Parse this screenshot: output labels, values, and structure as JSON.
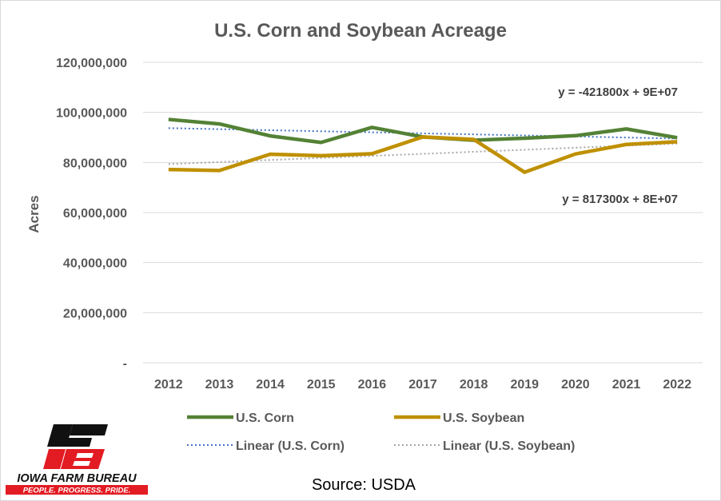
{
  "chart_data": {
    "type": "line",
    "title": "U.S. Corn and Soybean Acreage",
    "xlabel": "",
    "ylabel": "Acres",
    "x": [
      "2012",
      "2013",
      "2014",
      "2015",
      "2016",
      "2017",
      "2018",
      "2019",
      "2020",
      "2021",
      "2022"
    ],
    "ylim": [
      0,
      120000000
    ],
    "yticks": [
      0,
      20000000,
      40000000,
      60000000,
      80000000,
      100000000,
      120000000
    ],
    "ytick_labels": [
      "-",
      "20,000,000",
      "40,000,000",
      "60,000,000",
      "80,000,000",
      "100,000,000",
      "120,000,000"
    ],
    "grid": "horizontal",
    "legend_position": "bottom",
    "series": [
      {
        "name": "U.S. Corn",
        "color": "#548235",
        "style": "solid",
        "values": [
          97200000,
          95400000,
          90600000,
          88000000,
          94000000,
          90200000,
          88900000,
          89700000,
          90700000,
          93400000,
          89900000
        ]
      },
      {
        "name": "U.S. Soybean",
        "color": "#BF9000",
        "style": "solid",
        "values": [
          77200000,
          76800000,
          83300000,
          82700000,
          83500000,
          90200000,
          89200000,
          76100000,
          83400000,
          87200000,
          88300000
        ]
      },
      {
        "name": "Linear (U.S. Corn)",
        "color": "#4472C4",
        "style": "dotted",
        "trend_of": "U.S. Corn"
      },
      {
        "name": "Linear (U.S. Soybean)",
        "color": "#A6A6A6",
        "style": "dotted",
        "trend_of": "U.S. Soybean"
      }
    ],
    "annotations": [
      {
        "text": "y = -421800x + 9E+07",
        "refers_to": "Linear (U.S. Corn)"
      },
      {
        "text": "y = 817300x + 8E+07",
        "refers_to": "Linear (U.S. Soybean)"
      }
    ]
  },
  "source": "Source: USDA",
  "logo": {
    "line1": "IOWA FARM BUREAU",
    "line2": "PEOPLE. PROGRESS. PRIDE.",
    "red": "#E31B23",
    "black": "#111111"
  }
}
